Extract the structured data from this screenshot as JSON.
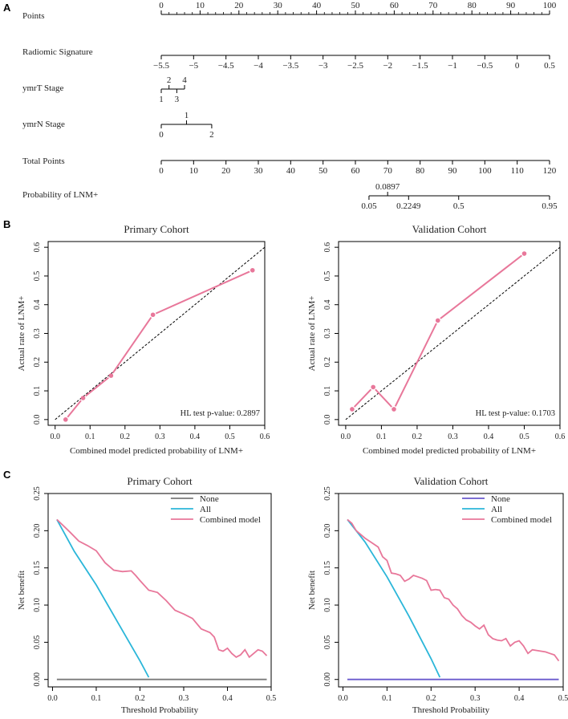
{
  "panel_labels": [
    "A",
    "B",
    "C"
  ],
  "colors": {
    "pink": "#E8779A",
    "cyan": "#2BB6D9",
    "gray": "#7a7a7a",
    "purple": "#6A5ACD",
    "axis": "#000000"
  },
  "chart_data": [
    {
      "type": "nomogram",
      "rows": [
        {
          "label": "Points",
          "ticks": [
            {
              "v": 0,
              "t": "0"
            },
            {
              "v": 10,
              "t": "10"
            },
            {
              "v": 20,
              "t": "20"
            },
            {
              "v": 30,
              "t": "30"
            },
            {
              "v": 40,
              "t": "40"
            },
            {
              "v": 50,
              "t": "50"
            },
            {
              "v": 60,
              "t": "60"
            },
            {
              "v": 70,
              "t": "70"
            },
            {
              "v": 80,
              "t": "80"
            },
            {
              "v": 90,
              "t": "90"
            },
            {
              "v": 100,
              "t": "100"
            }
          ]
        },
        {
          "label": "Radiomic Signature",
          "ticks": [
            {
              "v": 0,
              "t": "−5.5"
            },
            {
              "v": 8.33,
              "t": "−5"
            },
            {
              "v": 16.67,
              "t": "−4.5"
            },
            {
              "v": 25,
              "t": "−4"
            },
            {
              "v": 33.33,
              "t": "−3.5"
            },
            {
              "v": 41.67,
              "t": "−3"
            },
            {
              "v": 50,
              "t": "−2.5"
            },
            {
              "v": 58.33,
              "t": "−2"
            },
            {
              "v": 66.67,
              "t": "−1.5"
            },
            {
              "v": 75,
              "t": "−1"
            },
            {
              "v": 83.33,
              "t": "−0.5"
            },
            {
              "v": 91.67,
              "t": "0"
            },
            {
              "v": 100,
              "t": "0.5"
            }
          ]
        },
        {
          "label": "ymrT Stage",
          "ticks": [
            {
              "v": 0,
              "t": "1",
              "pos": "below"
            },
            {
              "v": 2,
              "t": "2",
              "pos": "above"
            },
            {
              "v": 4,
              "t": "3",
              "pos": "below"
            },
            {
              "v": 6,
              "t": "4",
              "pos": "above"
            }
          ]
        },
        {
          "label": "ymrN Stage",
          "ticks": [
            {
              "v": 0,
              "t": "0",
              "pos": "below"
            },
            {
              "v": 6.5,
              "t": "1",
              "pos": "above"
            },
            {
              "v": 13,
              "t": "2",
              "pos": "below"
            }
          ]
        },
        {
          "label": "Total Points",
          "ticks": [
            {
              "v": 0,
              "t": "0"
            },
            {
              "v": 8.33,
              "t": "10"
            },
            {
              "v": 16.67,
              "t": "20"
            },
            {
              "v": 25,
              "t": "30"
            },
            {
              "v": 33.33,
              "t": "40"
            },
            {
              "v": 41.67,
              "t": "50"
            },
            {
              "v": 50,
              "t": "60"
            },
            {
              "v": 58.33,
              "t": "70"
            },
            {
              "v": 66.67,
              "t": "80"
            },
            {
              "v": 75,
              "t": "90"
            },
            {
              "v": 83.33,
              "t": "100"
            },
            {
              "v": 91.67,
              "t": "110"
            },
            {
              "v": 100,
              "t": "120"
            }
          ]
        },
        {
          "label": "Probability of LNM+",
          "ticks": [
            {
              "v": 53.5,
              "t": "0.05",
              "pos": "below"
            },
            {
              "v": 58.3,
              "t": "0.0897",
              "pos": "above"
            },
            {
              "v": 63.7,
              "t": "0.2249",
              "pos": "below"
            },
            {
              "v": 76.6,
              "t": "0.5",
              "pos": "below"
            },
            {
              "v": 100,
              "t": "0.95",
              "pos": "below"
            }
          ]
        }
      ]
    },
    {
      "type": "line",
      "title": "Primary Cohort",
      "xlabel": "Combined model predicted probability of LNM+",
      "ylabel": "Actual rate of LNM+",
      "xlim": [
        -0.02,
        0.6
      ],
      "ylim": [
        -0.02,
        0.62
      ],
      "xticks": [
        "0.0",
        "0.1",
        "0.2",
        "0.3",
        "0.4",
        "0.5",
        "0.6"
      ],
      "yticks": [
        "0.0",
        "0.1",
        "0.2",
        "0.3",
        "0.4",
        "0.5",
        "0.6"
      ],
      "points": [
        [
          0.03,
          0.0
        ],
        [
          0.08,
          0.075
        ],
        [
          0.16,
          0.153
        ],
        [
          0.28,
          0.365
        ],
        [
          0.565,
          0.52
        ]
      ],
      "annotation": "HL test p-value: 0.2897"
    },
    {
      "type": "line",
      "title": "Validation Cohort",
      "xlabel": "Combined model predicted probability of LNM+",
      "ylabel": "Actual rate of LNM+",
      "xlim": [
        -0.02,
        0.6
      ],
      "ylim": [
        -0.02,
        0.62
      ],
      "xticks": [
        "0.0",
        "0.1",
        "0.2",
        "0.3",
        "0.4",
        "0.5",
        "0.6"
      ],
      "yticks": [
        "0.0",
        "0.1",
        "0.2",
        "0.3",
        "0.4",
        "0.5",
        "0.6"
      ],
      "points": [
        [
          0.018,
          0.036
        ],
        [
          0.077,
          0.113
        ],
        [
          0.135,
          0.036
        ],
        [
          0.258,
          0.345
        ],
        [
          0.5,
          0.578
        ]
      ],
      "annotation": "HL test p-value: 0.1703"
    },
    {
      "type": "line",
      "title": "Primary Cohort",
      "xlabel": "Threshold Probability",
      "ylabel": "Net benefit",
      "xlim": [
        -0.01,
        0.5
      ],
      "ylim": [
        -0.01,
        0.25
      ],
      "xticks": [
        "0.0",
        "0.1",
        "0.2",
        "0.3",
        "0.4",
        "0.5"
      ],
      "yticks": [
        "0.00",
        "0.05",
        "0.10",
        "0.15",
        "0.20",
        "0.25"
      ],
      "legend": [
        "None",
        "All",
        "Combined model"
      ],
      "series": [
        {
          "name": "None",
          "color_key": "gray",
          "points": [
            [
              0.01,
              0.0
            ],
            [
              0.49,
              0.0
            ]
          ]
        },
        {
          "name": "All",
          "color_key": "cyan",
          "points": [
            [
              0.01,
              0.215
            ],
            [
              0.05,
              0.172
            ],
            [
              0.1,
              0.127
            ],
            [
              0.15,
              0.076
            ],
            [
              0.2,
              0.025
            ],
            [
              0.22,
              0.003
            ]
          ]
        },
        {
          "name": "Combined model",
          "color_key": "pink",
          "points": [
            [
              0.01,
              0.215
            ],
            [
              0.04,
              0.198
            ],
            [
              0.06,
              0.186
            ],
            [
              0.08,
              0.18
            ],
            [
              0.1,
              0.173
            ],
            [
              0.12,
              0.157
            ],
            [
              0.14,
              0.147
            ],
            [
              0.16,
              0.145
            ],
            [
              0.18,
              0.146
            ],
            [
              0.19,
              0.14
            ],
            [
              0.2,
              0.133
            ],
            [
              0.22,
              0.12
            ],
            [
              0.24,
              0.117
            ],
            [
              0.26,
              0.106
            ],
            [
              0.28,
              0.093
            ],
            [
              0.3,
              0.088
            ],
            [
              0.32,
              0.082
            ],
            [
              0.34,
              0.068
            ],
            [
              0.36,
              0.063
            ],
            [
              0.37,
              0.057
            ],
            [
              0.38,
              0.04
            ],
            [
              0.39,
              0.038
            ],
            [
              0.4,
              0.042
            ],
            [
              0.41,
              0.035
            ],
            [
              0.42,
              0.03
            ],
            [
              0.43,
              0.033
            ],
            [
              0.44,
              0.04
            ],
            [
              0.45,
              0.03
            ],
            [
              0.46,
              0.035
            ],
            [
              0.47,
              0.04
            ],
            [
              0.48,
              0.038
            ],
            [
              0.49,
              0.032
            ]
          ]
        }
      ]
    },
    {
      "type": "line",
      "title": "Validation Cohort",
      "xlabel": "Threshold Probability",
      "ylabel": "Net benefit",
      "xlim": [
        -0.01,
        0.5
      ],
      "ylim": [
        -0.01,
        0.25
      ],
      "xticks": [
        "0.0",
        "0.1",
        "0.2",
        "0.3",
        "0.4",
        "0.5"
      ],
      "yticks": [
        "0.00",
        "0.05",
        "0.10",
        "0.15",
        "0.20",
        "0.25"
      ],
      "legend": [
        "None",
        "All",
        "Combined model"
      ],
      "series": [
        {
          "name": "None",
          "color_key": "purple",
          "points": [
            [
              0.01,
              0.0
            ],
            [
              0.49,
              0.0
            ]
          ]
        },
        {
          "name": "All",
          "color_key": "cyan",
          "points": [
            [
              0.01,
              0.215
            ],
            [
              0.05,
              0.185
            ],
            [
              0.1,
              0.138
            ],
            [
              0.15,
              0.085
            ],
            [
              0.2,
              0.028
            ],
            [
              0.22,
              0.003
            ]
          ]
        },
        {
          "name": "Combined model",
          "color_key": "pink",
          "points": [
            [
              0.01,
              0.215
            ],
            [
              0.02,
              0.21
            ],
            [
              0.03,
              0.2
            ],
            [
              0.05,
              0.19
            ],
            [
              0.07,
              0.182
            ],
            [
              0.08,
              0.178
            ],
            [
              0.09,
              0.165
            ],
            [
              0.1,
              0.16
            ],
            [
              0.11,
              0.143
            ],
            [
              0.12,
              0.142
            ],
            [
              0.13,
              0.14
            ],
            [
              0.14,
              0.132
            ],
            [
              0.15,
              0.135
            ],
            [
              0.16,
              0.14
            ],
            [
              0.17,
              0.138
            ],
            [
              0.18,
              0.136
            ],
            [
              0.19,
              0.133
            ],
            [
              0.2,
              0.12
            ],
            [
              0.21,
              0.121
            ],
            [
              0.22,
              0.12
            ],
            [
              0.23,
              0.11
            ],
            [
              0.24,
              0.108
            ],
            [
              0.25,
              0.1
            ],
            [
              0.26,
              0.095
            ],
            [
              0.27,
              0.086
            ],
            [
              0.28,
              0.08
            ],
            [
              0.29,
              0.077
            ],
            [
              0.3,
              0.072
            ],
            [
              0.31,
              0.068
            ],
            [
              0.32,
              0.073
            ],
            [
              0.33,
              0.06
            ],
            [
              0.34,
              0.055
            ],
            [
              0.35,
              0.053
            ],
            [
              0.36,
              0.052
            ],
            [
              0.37,
              0.055
            ],
            [
              0.38,
              0.045
            ],
            [
              0.39,
              0.05
            ],
            [
              0.4,
              0.052
            ],
            [
              0.41,
              0.045
            ],
            [
              0.42,
              0.035
            ],
            [
              0.43,
              0.04
            ],
            [
              0.44,
              0.039
            ],
            [
              0.45,
              0.038
            ],
            [
              0.46,
              0.037
            ],
            [
              0.47,
              0.035
            ],
            [
              0.48,
              0.033
            ],
            [
              0.49,
              0.025
            ]
          ]
        }
      ]
    }
  ]
}
